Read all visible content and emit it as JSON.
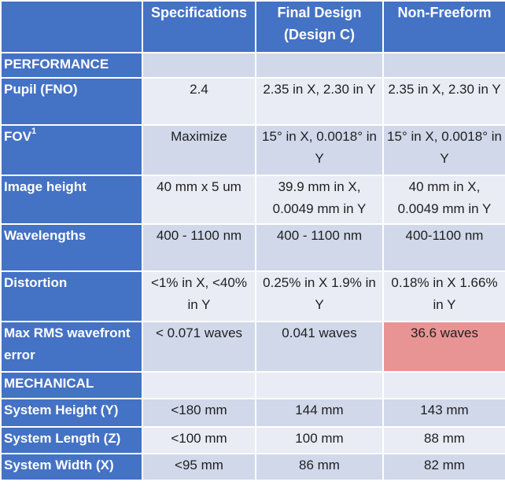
{
  "headers": [
    "",
    "Specifications",
    "Final Design (Design C)",
    "Non-Freeform"
  ],
  "sections": {
    "performance": "PERFORMANCE",
    "mechanical": "MECHANICAL"
  },
  "rows": {
    "pupil": {
      "label": "Pupil (FNO)",
      "spec": "2.4",
      "final": "2.35 in X, 2.30 in Y",
      "nonfree": "2.35 in X, 2.30 in Y"
    },
    "fov": {
      "label": "FOV",
      "sup": "1",
      "spec": "Maximize",
      "final": "15° in X, 0.0018° in Y",
      "nonfree": "15° in X, 0.0018° in Y"
    },
    "image_height": {
      "label": "Image height",
      "spec": "40 mm x 5 um",
      "final": "39.9 mm in X, 0.0049 mm in Y",
      "nonfree": "40 mm in X, 0.0049 mm in Y"
    },
    "wavelengths": {
      "label": "Wavelengths",
      "spec": "400 - 1100 nm",
      "final": "400 - 1100 nm",
      "nonfree": "400-1100 nm"
    },
    "distortion": {
      "label": "Distortion",
      "spec": "<1% in X, <40% in Y",
      "final": "0.25% in X 1.9% in Y",
      "nonfree": "0.18% in X 1.66% in Y"
    },
    "wavefront": {
      "label": "Max RMS wavefront error",
      "spec": "< 0.071 waves",
      "final": "0.041 waves",
      "nonfree": "36.6 waves"
    },
    "height": {
      "label": "System Height (Y)",
      "spec": "<180 mm",
      "final": "144 mm",
      "nonfree": "143 mm"
    },
    "length": {
      "label": "System Length (Z)",
      "spec": "<100 mm",
      "final": "100 mm",
      "nonfree": "88 mm"
    },
    "width": {
      "label": "System Width (X)",
      "spec": "<95 mm",
      "final": "86 mm",
      "nonfree": "82 mm"
    }
  },
  "colors": {
    "header_blue": "#4472c4",
    "row_dark": "#d0d8ea",
    "row_light": "#e9ecf5",
    "highlight": "#e99494"
  }
}
